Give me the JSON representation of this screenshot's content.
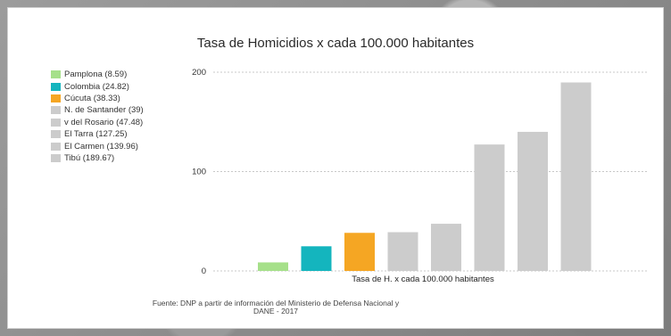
{
  "chart_data": {
    "type": "bar",
    "title": "Tasa de Homicidios x cada 100.000 habitantes",
    "xlabel": "Tasa de H. x cada 100.000 habitantes",
    "ylabel": "",
    "ylim": [
      0,
      200
    ],
    "yticks": [
      0,
      100,
      200
    ],
    "grid": true,
    "legend_position": "left",
    "categories": [
      "Pamplona",
      "Colombia",
      "Cúcuta",
      "N. de Santander",
      "v del Rosario",
      "El Tarra",
      "El Carmen",
      "Tibú"
    ],
    "values": [
      8.59,
      24.82,
      38.33,
      39,
      47.48,
      127.25,
      139.96,
      189.67
    ],
    "colors": [
      "#a6e08a",
      "#14b5be",
      "#f5a623",
      "#cccccc",
      "#cccccc",
      "#cccccc",
      "#cccccc",
      "#cccccc"
    ],
    "legend": [
      "Pamplona (8.59)",
      "Colombia (24.82)",
      "Cúcuta (38.33)",
      "N. de Santander (39)",
      "v del Rosario (47.48)",
      "El Tarra (127.25)",
      "El Carmen (139.96)",
      "Tibú (189.67)"
    ],
    "source": "Fuente: DNP a partir de información del Ministerio de Defensa Nacional y DANE - 2017"
  }
}
